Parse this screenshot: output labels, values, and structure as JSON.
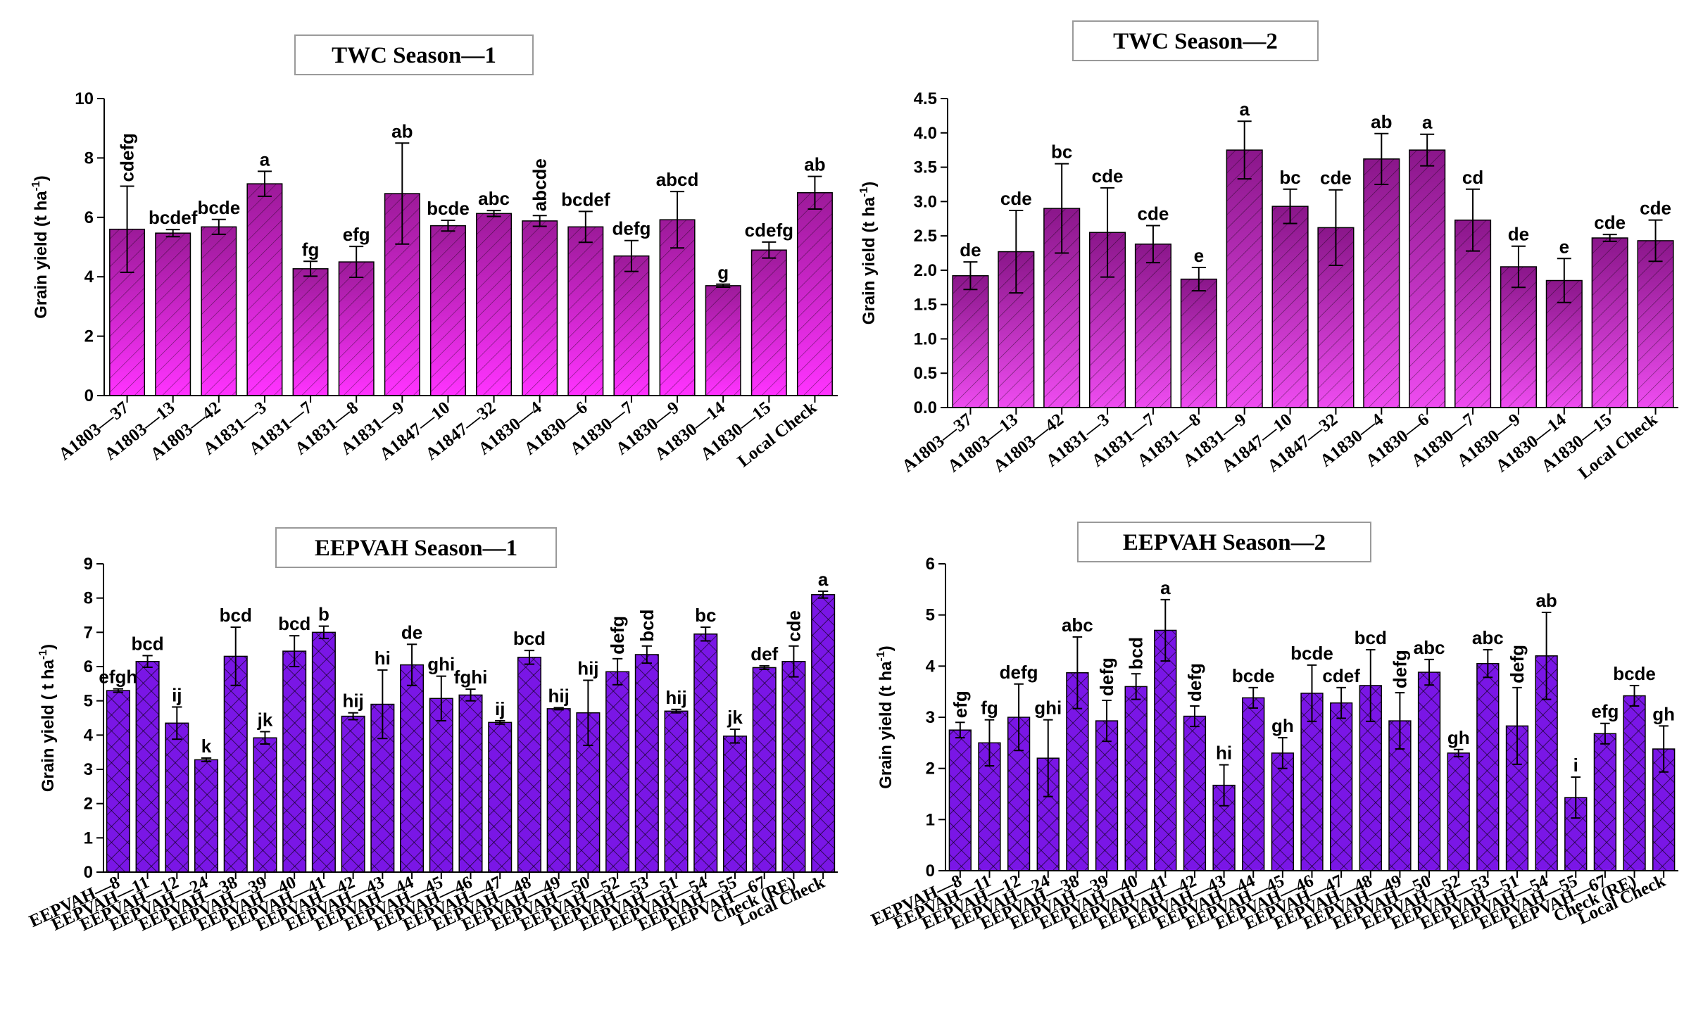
{
  "colors": {
    "twc1_top": "#9c1a99",
    "twc1_bottom": "#ff33ff",
    "twc2_top": "#8a168a",
    "twc2_bottom": "#ee4cf0",
    "eep_fill": "#7a16e6"
  },
  "chart_data": [
    {
      "id": "twc1",
      "type": "bar",
      "title": "TWC Season—1",
      "xlabel": "",
      "ylabel": "Grain yield (t ha",
      "ylabel_sup": "-1",
      "ylabel_close": ")",
      "ylim": [
        0,
        10
      ],
      "yticks": [
        0,
        2,
        4,
        6,
        8,
        10
      ],
      "ytick_labels": [
        "0",
        "2",
        "4",
        "6",
        "8",
        "10"
      ],
      "pattern": "hatch",
      "categories": [
        "A1803—37",
        "A1803—13",
        "A1803—42",
        "A1831—3",
        "A1831—7",
        "A1831—8",
        "A1831—9",
        "A1847—10",
        "A1847—32",
        "A1830—4",
        "A1830—6",
        "A1830—7",
        "A1830—9",
        "A1830—14",
        "A1830—15",
        "Local Check"
      ],
      "values": [
        5.6,
        5.47,
        5.68,
        7.13,
        4.27,
        4.5,
        6.8,
        5.72,
        6.13,
        5.88,
        5.68,
        4.7,
        5.92,
        3.7,
        4.9,
        6.83
      ],
      "errors": [
        1.45,
        0.12,
        0.25,
        0.42,
        0.25,
        0.52,
        1.7,
        0.18,
        0.1,
        0.18,
        0.52,
        0.52,
        0.95,
        0.05,
        0.27,
        0.55
      ],
      "letters": [
        "cdefg",
        "bcdef",
        "bcde",
        "a",
        "fg",
        "efg",
        "ab",
        "bcde",
        "abc",
        "abcde",
        "bcdef",
        "defg",
        "abcd",
        "g",
        "cdefg",
        "ab"
      ],
      "letters_vertical": [
        true,
        false,
        false,
        false,
        false,
        false,
        false,
        false,
        false,
        true,
        false,
        false,
        false,
        false,
        false,
        false
      ]
    },
    {
      "id": "twc2",
      "type": "bar",
      "title": "TWC Season—2",
      "xlabel": "",
      "ylabel": "Grain yield (t ha",
      "ylabel_sup": "-1",
      "ylabel_close": ")",
      "ylim": [
        0,
        4.5
      ],
      "yticks": [
        0,
        0.5,
        1,
        1.5,
        2,
        2.5,
        3,
        3.5,
        4,
        4.5
      ],
      "ytick_labels": [
        "0.0",
        "0.5",
        "1.0",
        "1.5",
        "2.0",
        "2.5",
        "3.0",
        "3.5",
        "4.0",
        "4.5"
      ],
      "pattern": "hatch",
      "categories": [
        "A1803—37",
        "A1803—13",
        "A1803—42",
        "A1831—3",
        "A1831—7",
        "A1831—8",
        "A1831—9",
        "A1847—10",
        "A1847—32",
        "A1830—4",
        "A1830—6",
        "A1830—7",
        "A1830—9",
        "A1830—14",
        "A1830—15",
        "Local Check"
      ],
      "values": [
        1.92,
        2.27,
        2.9,
        2.55,
        2.38,
        1.87,
        3.75,
        2.93,
        2.62,
        3.62,
        3.75,
        2.73,
        2.05,
        1.85,
        2.47,
        2.43
      ],
      "errors": [
        0.2,
        0.6,
        0.65,
        0.65,
        0.27,
        0.17,
        0.42,
        0.25,
        0.55,
        0.37,
        0.23,
        0.45,
        0.3,
        0.32,
        0.05,
        0.3
      ],
      "letters": [
        "de",
        "cde",
        "bc",
        "cde",
        "cde",
        "e",
        "a",
        "bc",
        "cde",
        "ab",
        "a",
        "cd",
        "de",
        "e",
        "cde",
        "cde"
      ],
      "letters_vertical": [
        false,
        false,
        false,
        false,
        false,
        false,
        false,
        false,
        false,
        false,
        false,
        false,
        false,
        false,
        false,
        false
      ]
    },
    {
      "id": "eep1",
      "type": "bar",
      "title": "EEPVAH Season—1",
      "xlabel": "",
      "ylabel": "Grain yield ( t ha",
      "ylabel_sup": "-1",
      "ylabel_close": ")",
      "ylim": [
        0,
        9
      ],
      "yticks": [
        0,
        1,
        2,
        3,
        4,
        5,
        6,
        7,
        8,
        9
      ],
      "ytick_labels": [
        "0",
        "1",
        "2",
        "3",
        "4",
        "5",
        "6",
        "7",
        "8",
        "9"
      ],
      "pattern": "crosshatch",
      "categories": [
        "EEPVAH—8",
        "EEPVAH—11",
        "EEPVAH—12",
        "EEPVAH—24",
        "EEPVAH—38",
        "EEPVAH—39",
        "EEPVAH—40",
        "EEPVAH—41",
        "EEPVAH—42",
        "EEPVAH—43",
        "EEPVAH—44",
        "EEPVAH—45",
        "EEPVAH—46",
        "EEPVAH—47",
        "EEPVAH—48",
        "EEPVAH—49",
        "EEPVAH—50",
        "EEPVAH—52",
        "EEPVAH—53",
        "EEPVAH—51",
        "EEPVAH—54",
        "EEPVAH—55",
        "EEPVAH—67",
        "Check (RE)",
        "Local Check"
      ],
      "values": [
        5.3,
        6.15,
        4.35,
        3.28,
        6.3,
        3.92,
        6.45,
        7.0,
        4.55,
        4.9,
        6.05,
        5.07,
        5.17,
        4.37,
        6.27,
        4.77,
        4.65,
        5.85,
        6.35,
        4.7,
        6.95,
        3.97,
        5.97,
        6.15,
        8.1
      ],
      "errors": [
        0.05,
        0.17,
        0.47,
        0.05,
        0.85,
        0.18,
        0.45,
        0.18,
        0.1,
        1.0,
        0.6,
        0.65,
        0.17,
        0.05,
        0.2,
        0.03,
        0.95,
        0.38,
        0.25,
        0.05,
        0.2,
        0.2,
        0.05,
        0.45,
        0.1
      ],
      "letters": [
        "efgh",
        "bcd",
        "ij",
        "k",
        "bcd",
        "jk",
        "bcd",
        "b",
        "hij",
        "hi",
        "de",
        "ghi",
        "fghi",
        "ij",
        "bcd",
        "hij",
        "hij",
        "defg",
        "bcd",
        "hij",
        "bc",
        "jk",
        "def",
        "cde",
        "a"
      ],
      "letters_vertical": [
        false,
        false,
        false,
        false,
        false,
        false,
        false,
        false,
        false,
        false,
        false,
        false,
        false,
        false,
        false,
        false,
        false,
        true,
        true,
        false,
        false,
        false,
        false,
        true,
        false
      ]
    },
    {
      "id": "eep2",
      "type": "bar",
      "title": "EEPVAH Season—2",
      "xlabel": "",
      "ylabel": "Grain yield (t ha",
      "ylabel_sup": "-1",
      "ylabel_close": ")",
      "ylim": [
        0,
        6
      ],
      "yticks": [
        0,
        1,
        2,
        3,
        4,
        5,
        6
      ],
      "ytick_labels": [
        "0",
        "1",
        "2",
        "3",
        "4",
        "5",
        "6"
      ],
      "pattern": "crosshatch",
      "categories": [
        "EEPVAH—8",
        "EEPVAH—11",
        "EEPVAH—12",
        "EEPVAH—24",
        "EEPVAH—38",
        "EEPVAH—39",
        "EEPVAH—40",
        "EEPVAH—41",
        "EEPVAH—42",
        "EEPVAH—43",
        "EEPVAH—44",
        "EEPVAH—45",
        "EEPVAH—46",
        "EEPVAH—47",
        "EEPVAH—48",
        "EEPVAH—49",
        "EEPVAH—50",
        "EEPVAH—52",
        "EEPVAH—53",
        "EEPVAH—51",
        "EEPVAH—54",
        "EEPVAH—55",
        "EEPVAH—67",
        "Check (RE)",
        "Local Check"
      ],
      "values": [
        2.75,
        2.5,
        3.0,
        2.2,
        3.87,
        2.93,
        3.6,
        4.7,
        3.02,
        1.67,
        3.38,
        2.3,
        3.47,
        3.28,
        3.62,
        2.93,
        3.88,
        2.3,
        4.05,
        2.83,
        4.2,
        1.43,
        2.68,
        3.42,
        2.38
      ],
      "errors": [
        0.15,
        0.45,
        0.65,
        0.75,
        0.7,
        0.4,
        0.25,
        0.6,
        0.2,
        0.4,
        0.2,
        0.3,
        0.55,
        0.3,
        0.7,
        0.55,
        0.25,
        0.07,
        0.27,
        0.75,
        0.85,
        0.4,
        0.2,
        0.2,
        0.45
      ],
      "letters": [
        "efg",
        "fg",
        "defg",
        "ghi",
        "abc",
        "defg",
        "bcd",
        "a",
        "defg",
        "hi",
        "bcde",
        "gh",
        "bcde",
        "cdef",
        "bcd",
        "defg",
        "abc",
        "gh",
        "abc",
        "defg",
        "ab",
        "i",
        "efg",
        "bcde",
        "gh"
      ],
      "letters_vertical": [
        true,
        false,
        false,
        false,
        false,
        true,
        true,
        false,
        true,
        false,
        false,
        false,
        false,
        false,
        false,
        true,
        false,
        false,
        false,
        true,
        false,
        false,
        false,
        false,
        false
      ]
    }
  ]
}
